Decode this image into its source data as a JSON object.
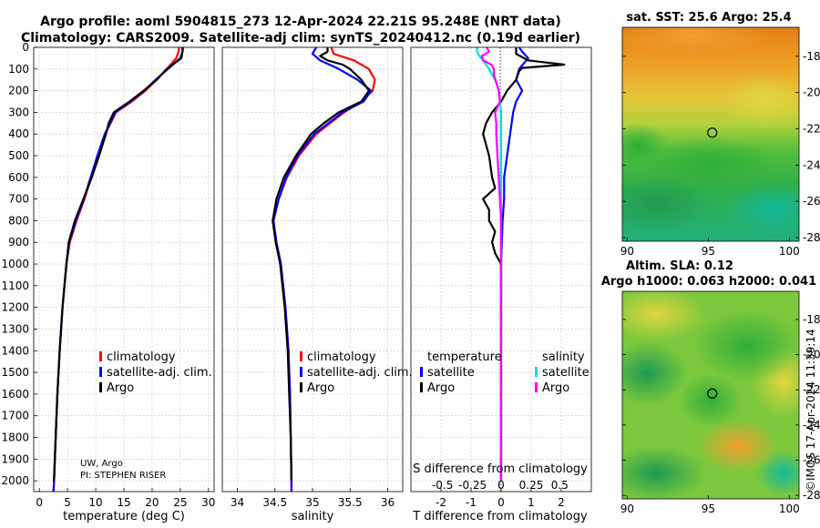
{
  "title": {
    "line1": "Argo profile: aoml 5904815_273 12-Apr-2024 22.21S 95.248E (NRT data)",
    "line2": "Climatology: CARS2009. Satellite-adj clim: synTS_20240412.nc (0.19d earlier)"
  },
  "legend": {
    "climatology": "climatology",
    "sat_adj": "satellite-adj. clim.",
    "argo": "Argo",
    "temperature_head": "temperature",
    "salinity_head": "salinity",
    "satellite": "satellite"
  },
  "credits": {
    "line1": "UW, Argo",
    "line2": "PI: STEPHEN RISER"
  },
  "map_titles": {
    "sst": "sat. SST: 25.6 Argo: 25.4",
    "sla1": "Altim. SLA: 0.12",
    "sla2": "Argo h1000: 0.063 h2000: 0.041"
  },
  "stamp": "©IMOS 17-Apr-2024 11:39:14",
  "colors": {
    "climatology": "#ff0000",
    "sat_adj": "#0000ff",
    "argo": "#000000",
    "sat_s": "#00e0e0",
    "argo_s": "#ff00ff"
  },
  "chart_data": [
    {
      "type": "line",
      "xlabel": "temperature (deg C)",
      "ylabel": "",
      "xlim": [
        -1,
        31
      ],
      "ylim": [
        2050,
        0
      ],
      "xticks": [
        0,
        5,
        10,
        15,
        20,
        25,
        30
      ],
      "yticks": [
        0,
        100,
        200,
        300,
        400,
        500,
        600,
        700,
        800,
        900,
        1000,
        1100,
        1200,
        1300,
        1400,
        1500,
        1600,
        1700,
        1800,
        1900,
        2000
      ],
      "series": [
        {
          "name": "climatology",
          "color": "#ff0000",
          "depth": [
            0,
            20,
            50,
            100,
            150,
            200,
            250,
            300,
            400,
            500,
            600,
            700,
            800,
            900,
            1000,
            1200,
            1400,
            1600,
            1800,
            2000,
            2050
          ],
          "values": [
            24.8,
            24.7,
            24.3,
            22.6,
            20.8,
            18.8,
            16.4,
            13.6,
            11.7,
            10.4,
            9.2,
            8.0,
            6.6,
            5.4,
            4.8,
            4.1,
            3.6,
            3.2,
            2.9,
            2.6,
            2.5
          ]
        },
        {
          "name": "satellite-adj. clim.",
          "color": "#0000ff",
          "depth": [
            0,
            20,
            50,
            100,
            150,
            200,
            250,
            300,
            400,
            500,
            600,
            700,
            800,
            900,
            1000,
            1200,
            1400,
            1600,
            1800,
            2000,
            2050
          ],
          "values": [
            25.5,
            25.4,
            25.0,
            22.8,
            20.6,
            18.6,
            16.2,
            13.5,
            11.6,
            10.3,
            9.1,
            7.9,
            6.5,
            5.3,
            4.8,
            4.1,
            3.6,
            3.2,
            2.9,
            2.6,
            2.5
          ]
        },
        {
          "name": "Argo",
          "color": "#000000",
          "depth": [
            0,
            20,
            50,
            100,
            150,
            200,
            250,
            300,
            350,
            400,
            500,
            600,
            700,
            800,
            900,
            1000,
            1200,
            1400,
            1600,
            1800,
            2000
          ],
          "values": [
            25.4,
            25.4,
            25.2,
            22.6,
            20.8,
            18.5,
            16.0,
            13.2,
            12.3,
            11.8,
            10.6,
            9.3,
            7.8,
            6.3,
            5.2,
            4.8,
            4.1,
            3.6,
            3.2,
            2.9,
            2.6
          ]
        }
      ]
    },
    {
      "type": "line",
      "xlabel": "salinity",
      "ylabel": "",
      "xlim": [
        33.8,
        36.2
      ],
      "ylim": [
        2050,
        0
      ],
      "xticks": [
        34,
        34.5,
        35,
        35.5,
        36
      ],
      "series": [
        {
          "name": "climatology",
          "color": "#ff0000",
          "depth": [
            0,
            30,
            60,
            100,
            150,
            200,
            250,
            300,
            400,
            500,
            600,
            700,
            800,
            900,
            1000,
            1200,
            1400,
            1600,
            1800,
            2000,
            2050
          ],
          "values": [
            35.25,
            35.28,
            35.55,
            35.75,
            35.83,
            35.8,
            35.65,
            35.42,
            35.05,
            34.82,
            34.66,
            34.55,
            34.48,
            34.52,
            34.58,
            34.64,
            34.68,
            34.7,
            34.71,
            34.72,
            34.72
          ]
        },
        {
          "name": "satellite-adj. clim.",
          "color": "#0000ff",
          "depth": [
            0,
            30,
            60,
            100,
            150,
            200,
            250,
            300,
            400,
            500,
            600,
            700,
            800,
            900,
            1000,
            1200,
            1400,
            1600,
            1800,
            2000,
            2050
          ],
          "values": [
            35.05,
            35.0,
            35.1,
            35.35,
            35.6,
            35.78,
            35.68,
            35.4,
            35.02,
            34.8,
            34.65,
            34.55,
            34.48,
            34.52,
            34.58,
            34.64,
            34.68,
            34.7,
            34.71,
            34.72,
            34.72
          ]
        },
        {
          "name": "Argo",
          "color": "#000000",
          "depth": [
            0,
            20,
            40,
            60,
            80,
            100,
            150,
            200,
            250,
            300,
            350,
            400,
            500,
            600,
            700,
            800,
            900,
            1000,
            1200,
            1400,
            1600,
            1800,
            2000
          ],
          "values": [
            35.2,
            35.2,
            35.1,
            35.2,
            35.4,
            35.5,
            35.65,
            35.75,
            35.65,
            35.35,
            35.15,
            34.98,
            34.78,
            34.62,
            34.52,
            34.47,
            34.51,
            34.57,
            34.63,
            34.67,
            34.69,
            34.71,
            34.72
          ]
        }
      ]
    },
    {
      "type": "line",
      "xlabel": "T difference from climatology",
      "xlabel_top": "S difference from climatology",
      "ylabel": "",
      "xlim": [
        -3,
        3
      ],
      "ylim": [
        2050,
        0
      ],
      "xticks": [
        -2,
        -1,
        0,
        1,
        2
      ],
      "xticks_s": [
        "-0.5",
        "-0.25",
        "0",
        "0.25",
        "0.5"
      ],
      "series": [
        {
          "name": "temperature satellite",
          "color": "#0000ff",
          "depth": [
            0,
            20,
            50,
            100,
            150,
            200,
            250,
            300,
            400,
            500,
            600,
            700,
            800,
            1000,
            1500,
            2000
          ],
          "values": [
            0.6,
            0.7,
            0.9,
            0.6,
            0.5,
            0.7,
            0.5,
            0.4,
            0.3,
            0.2,
            0.1,
            0.1,
            0.05,
            0.0,
            0.0,
            0.0
          ]
        },
        {
          "name": "temperature Argo",
          "color": "#000000",
          "depth": [
            0,
            30,
            60,
            70,
            80,
            95,
            110,
            150,
            200,
            250,
            300,
            350,
            400,
            450,
            500,
            600,
            650,
            700,
            750,
            800,
            850,
            900,
            950,
            1000,
            1200,
            1600,
            2000
          ],
          "values": [
            0.5,
            0.5,
            0.9,
            1.5,
            2.1,
            0.7,
            0.6,
            0.5,
            0.2,
            0.0,
            -0.3,
            -0.5,
            -0.6,
            -0.5,
            -0.4,
            -0.3,
            -0.2,
            -0.6,
            -0.4,
            -0.4,
            -0.2,
            -0.3,
            -0.2,
            0.0,
            0.0,
            0.0,
            0.0
          ]
        },
        {
          "name": "salinity satellite",
          "color": "#00e0e0",
          "depth": [
            0,
            20,
            40,
            60,
            100,
            150,
            200,
            300,
            400,
            500,
            700,
            1000,
            2000
          ],
          "values": [
            -0.2,
            -0.2,
            -0.18,
            -0.15,
            -0.1,
            -0.05,
            -0.02,
            0.0,
            0.0,
            0.0,
            0.0,
            0.0,
            0.0
          ]
        },
        {
          "name": "salinity Argo",
          "color": "#ff00ff",
          "depth": [
            0,
            20,
            40,
            60,
            80,
            100,
            130,
            160,
            200,
            250,
            300,
            350,
            400,
            500,
            600,
            700,
            800,
            1000,
            1500,
            2000
          ],
          "values": [
            -0.12,
            -0.1,
            -0.16,
            -0.15,
            -0.08,
            -0.06,
            -0.06,
            -0.04,
            -0.02,
            -0.01,
            -0.05,
            -0.04,
            -0.04,
            -0.03,
            -0.02,
            -0.01,
            0.0,
            0.0,
            0.0,
            0.0
          ]
        }
      ]
    },
    {
      "type": "heatmap",
      "title": "sat. SST: 25.6 Argo: 25.4",
      "xlim": [
        89.7,
        100.6
      ],
      "ylim": [
        -28.2,
        -16.4
      ],
      "xticks": [
        90,
        95,
        100
      ],
      "yticks": [
        -18,
        -20,
        -22,
        -24,
        -26,
        -28
      ],
      "marker": [
        95.248,
        -22.21
      ]
    },
    {
      "type": "heatmap",
      "title": "Altim. SLA: 0.12",
      "xlim": [
        89.7,
        100.6
      ],
      "ylim": [
        -28.2,
        -16.4
      ],
      "xticks": [
        90,
        95,
        100
      ],
      "yticks": [
        -18,
        -20,
        -22,
        -24,
        -26,
        -28
      ],
      "marker": [
        95.248,
        -22.21
      ]
    }
  ]
}
